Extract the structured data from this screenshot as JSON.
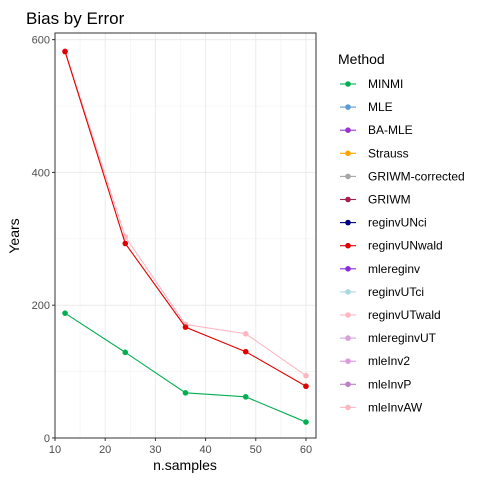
{
  "chart_data": {
    "type": "line",
    "title": "Bias by Error",
    "xlabel": "n.samples",
    "ylabel": "Years",
    "xlim": [
      10,
      62
    ],
    "ylim": [
      0,
      610
    ],
    "xticks": [
      10,
      20,
      30,
      40,
      50,
      60
    ],
    "yticks": [
      0,
      200,
      400,
      600
    ],
    "grid": true,
    "legend": {
      "title": "Method",
      "position": "right",
      "entries": [
        {
          "name": "MINMI",
          "color": "#00b050"
        },
        {
          "name": "MLE",
          "color": "#5b9bd5"
        },
        {
          "name": "BA-MLE",
          "color": "#9933cc"
        },
        {
          "name": "Strauss",
          "color": "#ffa500"
        },
        {
          "name": "GRIWM-corrected",
          "color": "#a6a6a6"
        },
        {
          "name": "GRIWM",
          "color": "#a5204a"
        },
        {
          "name": "reginvUNci",
          "color": "#000080"
        },
        {
          "name": "reginvUNwald",
          "color": "#e00000"
        },
        {
          "name": "mlereginv",
          "color": "#8a2be2"
        },
        {
          "name": "reginvUTci",
          "color": "#a8d8e0"
        },
        {
          "name": "reginvUTwald",
          "color": "#ffb6c1"
        },
        {
          "name": "mlereginvUT",
          "color": "#d8a0d8"
        },
        {
          "name": "mleInv2",
          "color": "#dd99dd"
        },
        {
          "name": "mleInvP",
          "color": "#c080c8"
        },
        {
          "name": "mleInvAW",
          "color": "#ffb6c1"
        }
      ]
    },
    "series": [
      {
        "name": "reginvUTwald",
        "color": "#ffb6c1",
        "x": [
          12,
          24,
          36,
          48,
          60
        ],
        "y": [
          583,
          303,
          171,
          157,
          94
        ]
      },
      {
        "name": "reginvUNwald",
        "color": "#e00000",
        "x": [
          12,
          24,
          36,
          48,
          60
        ],
        "y": [
          582,
          293,
          167,
          130,
          78
        ]
      },
      {
        "name": "MINMI",
        "color": "#00b050",
        "x": [
          12,
          24,
          36,
          48,
          60
        ],
        "y": [
          188,
          129,
          68,
          62,
          24
        ]
      }
    ]
  }
}
